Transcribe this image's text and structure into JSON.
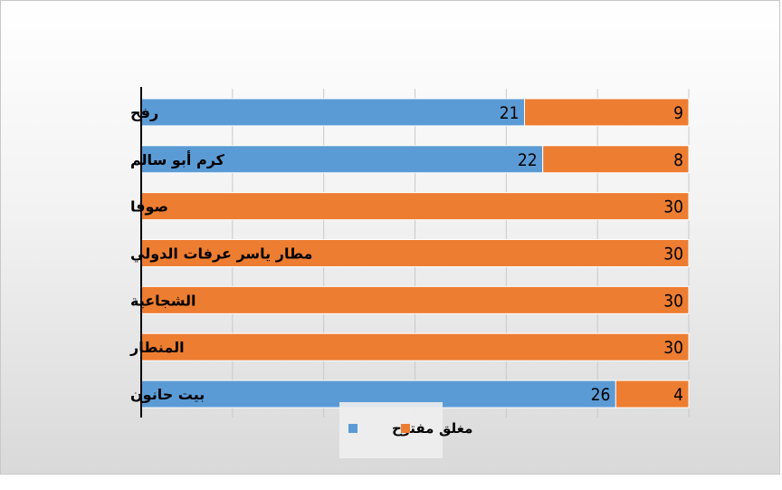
{
  "chart_data": {
    "type": "bar",
    "orientation": "horizontal",
    "stacked": true,
    "categories": [
      "رفح",
      "كرم أبو سالم",
      "صوفا",
      "مطار ياسر عرفات الدولي",
      "الشجاعية",
      "المنطار",
      "بيت حانون"
    ],
    "series": [
      {
        "name": "مفتوح",
        "color": "#5b9bd5",
        "values": [
          21,
          22,
          0,
          0,
          0,
          0,
          26
        ]
      },
      {
        "name": "مغلق",
        "color": "#ed7d31",
        "values": [
          9,
          8,
          30,
          30,
          30,
          30,
          4
        ]
      }
    ],
    "xlim": [
      0,
      30
    ],
    "gridlines": true,
    "legend_position": "bottom",
    "title": "",
    "xlabel": "",
    "ylabel": ""
  }
}
